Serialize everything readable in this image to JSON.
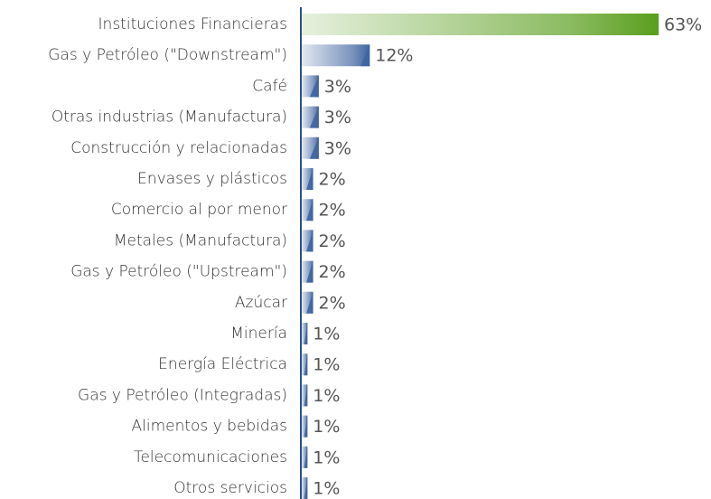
{
  "chart_data": {
    "type": "bar",
    "orientation": "horizontal",
    "categories": [
      "Instituciones Financieras",
      "Gas y Petróleo (\"Downstream\")",
      "Café",
      "Otras industrias (Manufactura)",
      "Construcción y relacionadas",
      "Envases y plásticos",
      "Comercio al por menor",
      "Metales (Manufactura)",
      "Gas y Petróleo (\"Upstream\")",
      "Azúcar",
      "Minería",
      "Energía Eléctrica",
      "Gas y Petróleo (Integradas)",
      "Alimentos y bebidas",
      "Telecomunicaciones",
      "Otros servicios"
    ],
    "values": [
      63,
      12,
      3,
      3,
      3,
      2,
      2,
      2,
      2,
      2,
      1,
      1,
      1,
      1,
      1,
      1
    ],
    "value_labels": [
      "63%",
      "12%",
      "3%",
      "3%",
      "3%",
      "2%",
      "2%",
      "2%",
      "2%",
      "2%",
      "1%",
      "1%",
      "1%",
      "1%",
      "1%",
      "1%"
    ],
    "colors": [
      "#5a9e1e",
      "#3f64a0",
      "#3f64a0",
      "#3f64a0",
      "#3f64a0",
      "#3f64a0",
      "#3f64a0",
      "#3f64a0",
      "#3f64a0",
      "#3f64a0",
      "#3f64a0",
      "#3f64a0",
      "#3f64a0",
      "#3f64a0",
      "#3f64a0",
      "#3f64a0"
    ]
  }
}
